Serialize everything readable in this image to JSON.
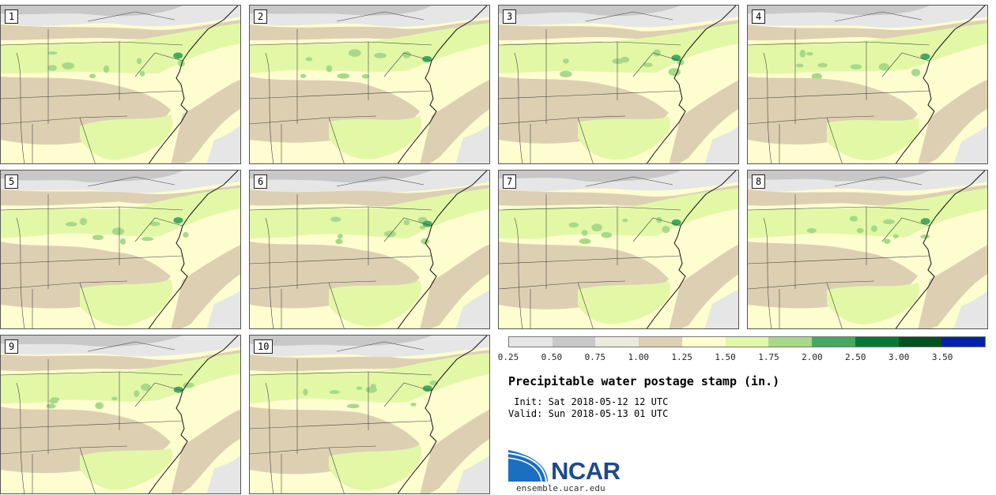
{
  "panels": [
    {
      "label": "1"
    },
    {
      "label": "2"
    },
    {
      "label": "3"
    },
    {
      "label": "4"
    },
    {
      "label": "5"
    },
    {
      "label": "6"
    },
    {
      "label": "7"
    },
    {
      "label": "8"
    },
    {
      "label": "9"
    },
    {
      "label": "10"
    }
  ],
  "colorbar": {
    "colors": [
      "#e6e6e6",
      "#c8c8c8",
      "#ebebdc",
      "#ddd0b2",
      "#fdfdd0",
      "#e2f8a6",
      "#a8d98a",
      "#44aa60",
      "#007a35",
      "#005020",
      "#0022aa"
    ],
    "tick_labels": [
      "0.25",
      "0.50",
      "0.75",
      "1.00",
      "1.25",
      "1.50",
      "1.75",
      "2.00",
      "2.50",
      "3.00",
      "3.50"
    ]
  },
  "title": "Precipitable water postage stamp (in.)",
  "init_line": " Init: Sat 2018-05-12 12 UTC",
  "valid_line": "Valid: Sun 2018-05-13 01 UTC",
  "logo": {
    "text": "NCAR",
    "url": "ensemble.ucar.edu"
  },
  "map_colors": {
    "ocean": "#fdfdd0",
    "tan": "#ddd0b2",
    "gray": "#c8c8c8",
    "lightgray": "#e6e6e6",
    "green": "#e2f8a6",
    "darkgreen": "#a8d98a",
    "deepgreen": "#44aa60"
  }
}
